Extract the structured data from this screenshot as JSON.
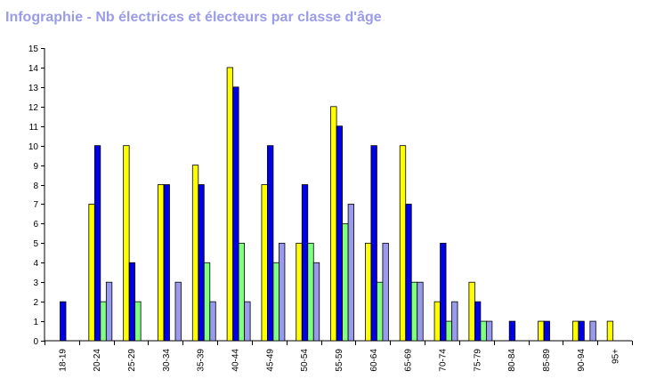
{
  "title": "Infographie - Nb électrices et électeurs par classe d'âge",
  "chart_data": {
    "type": "bar",
    "title": "Infographie - Nb électrices et électeurs par classe d'âge",
    "xlabel": "",
    "ylabel": "",
    "ylim": [
      0,
      15
    ],
    "yticks": [
      0,
      1,
      2,
      3,
      4,
      5,
      6,
      7,
      8,
      9,
      10,
      11,
      12,
      13,
      14,
      15
    ],
    "grid": false,
    "legend": "none",
    "categories": [
      "18-19",
      "20-24",
      "25-29",
      "30-34",
      "35-39",
      "40-44",
      "45-49",
      "50-54",
      "55-59",
      "60-64",
      "65-69",
      "70-74",
      "75-79",
      "80-84",
      "85-89",
      "90-94",
      "95+"
    ],
    "series": [
      {
        "color": "#ffff00",
        "values": [
          0,
          7,
          10,
          8,
          9,
          14,
          8,
          5,
          12,
          5,
          10,
          2,
          3,
          0,
          1,
          1,
          1
        ]
      },
      {
        "color": "#0000e6",
        "values": [
          2,
          10,
          4,
          8,
          8,
          13,
          10,
          8,
          11,
          10,
          7,
          5,
          2,
          1,
          1,
          1,
          0
        ]
      },
      {
        "color": "#80ff80",
        "values": [
          0,
          2,
          2,
          0,
          4,
          5,
          4,
          5,
          6,
          3,
          3,
          1,
          1,
          0,
          0,
          0,
          0
        ]
      },
      {
        "color": "#9999ee",
        "values": [
          0,
          3,
          0,
          3,
          2,
          2,
          5,
          4,
          7,
          5,
          3,
          2,
          1,
          0,
          0,
          1,
          0
        ]
      }
    ]
  }
}
